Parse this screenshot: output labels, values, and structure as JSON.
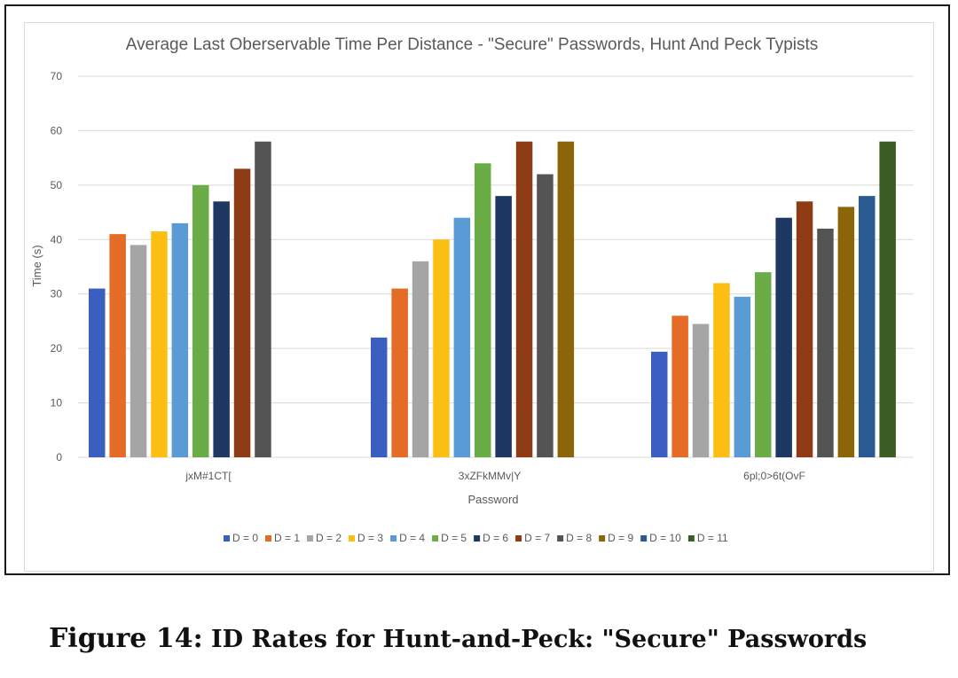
{
  "chart_data": {
    "type": "bar",
    "title": "Average Last Oberservable Time Per Distance - \"Secure\" Passwords, Hunt And Peck Typists",
    "xlabel": "Password",
    "ylabel": "Time (s)",
    "ylim": [
      0,
      70
    ],
    "yticks": [
      0,
      10,
      20,
      30,
      40,
      50,
      60,
      70
    ],
    "grid": true,
    "legend_position": "bottom",
    "categories": [
      "jxM#1CT[",
      "3xZFkMMv|Y",
      "6pl;0>6t(OvF"
    ],
    "series": [
      {
        "name": "D = 0",
        "color": "#3b5fc0",
        "values": [
          31,
          22,
          19.4
        ]
      },
      {
        "name": "D = 1",
        "color": "#e46c27",
        "values": [
          41,
          31,
          26
        ]
      },
      {
        "name": "D = 2",
        "color": "#a5a5a5",
        "values": [
          39,
          36,
          24.5
        ]
      },
      {
        "name": "D = 3",
        "color": "#fdbe14",
        "values": [
          41.5,
          40,
          32
        ]
      },
      {
        "name": "D = 4",
        "color": "#5a9bd5",
        "values": [
          43,
          44,
          29.5
        ]
      },
      {
        "name": "D = 5",
        "color": "#6aad47",
        "values": [
          50,
          54,
          34
        ]
      },
      {
        "name": "D = 6",
        "color": "#1f3763",
        "values": [
          47,
          48,
          44
        ]
      },
      {
        "name": "D = 7",
        "color": "#8f3b16",
        "values": [
          53,
          58,
          47
        ]
      },
      {
        "name": "D = 8",
        "color": "#545454",
        "values": [
          58,
          52,
          42
        ]
      },
      {
        "name": "D = 9",
        "color": "#8c6508",
        "values": [
          null,
          58,
          46
        ]
      },
      {
        "name": "D = 10",
        "color": "#2a5a8f",
        "values": [
          null,
          null,
          48
        ]
      },
      {
        "name": "D = 11",
        "color": "#3b5d23",
        "values": [
          null,
          null,
          58
        ]
      }
    ]
  },
  "caption": {
    "label": "Figure 14:",
    "text": " ID Rates for Hunt-and-Peck: \"Secure\" Passwords"
  }
}
